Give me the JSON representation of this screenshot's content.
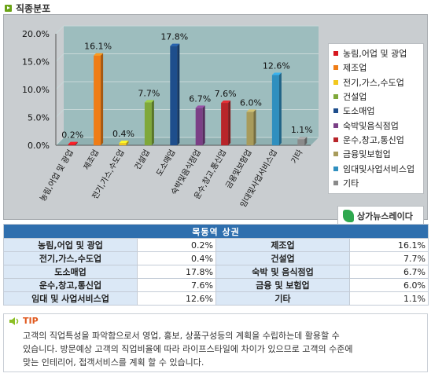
{
  "header": {
    "title": "직종분포"
  },
  "chart_data": {
    "type": "bar",
    "categories": [
      "농림,어업 및 광업",
      "제조업",
      "전기,가스,수도업",
      "건설업",
      "도소매업",
      "숙박및음식점업",
      "운수,창고,통신업",
      "금융및보험업",
      "임대및사업서비스업",
      "기타"
    ],
    "values": [
      0.2,
      16.1,
      0.4,
      7.7,
      17.8,
      6.7,
      7.6,
      6.0,
      12.6,
      1.1
    ],
    "value_labels": [
      "0.2%",
      "16.1%",
      "0.4%",
      "7.7%",
      "17.8%",
      "6.7%",
      "7.6%",
      "6.0%",
      "12.6%",
      "1.1%"
    ],
    "colors": [
      "#d6171f",
      "#ef7d16",
      "#f2c81e",
      "#7fa83a",
      "#1e4e8c",
      "#7b3f86",
      "#b8252a",
      "#a89b5b",
      "#2f8fbf",
      "#8a8a8a"
    ],
    "ylim": [
      0,
      20
    ],
    "y_ticks": [
      "0.0%",
      "5.0%",
      "10.0%",
      "15.0%",
      "20.0%"
    ],
    "grid": true,
    "legend_position": "right",
    "legend": [
      "농림,어업 및 광업",
      "제조업",
      "전기,가스,수도업",
      "건설업",
      "도소매업",
      "숙박및음식점업",
      "운수,창고,통신업",
      "금융및보험업",
      "임대및사업서비스업",
      "기타"
    ]
  },
  "brand": {
    "name": "상가뉴스레이다"
  },
  "table": {
    "title": "목동역 상권",
    "rows": [
      [
        {
          "name": "농림,어업 및 광업",
          "value": "0.2%"
        },
        {
          "name": "제조업",
          "value": "16.1%"
        }
      ],
      [
        {
          "name": "전기,가스,수도업",
          "value": "0.4%"
        },
        {
          "name": "건설업",
          "value": "7.7%"
        }
      ],
      [
        {
          "name": "도소매업",
          "value": "17.8%"
        },
        {
          "name": "숙박 및 음식점업",
          "value": "6.7%"
        }
      ],
      [
        {
          "name": "운수,창고,통신업",
          "value": "7.6%"
        },
        {
          "name": "금융 및 보험업",
          "value": "6.0%"
        }
      ],
      [
        {
          "name": "임대 및 사업서비스업",
          "value": "12.6%"
        },
        {
          "name": "기타",
          "value": "1.1%"
        }
      ]
    ]
  },
  "tip": {
    "label": "TIP",
    "lines": [
      "고객의 직업특성을 파악함으로서 영업, 홍보, 상품구성등의 계획을 수립하는데 활용할 수",
      "있습니다. 방문예상 고객의 직업비율에 따라 라이프스타일에 차이가 있으므로 고객의 수준에",
      "맞는 인테리어, 접객서비스를 계획 할 수 있습니다."
    ]
  }
}
